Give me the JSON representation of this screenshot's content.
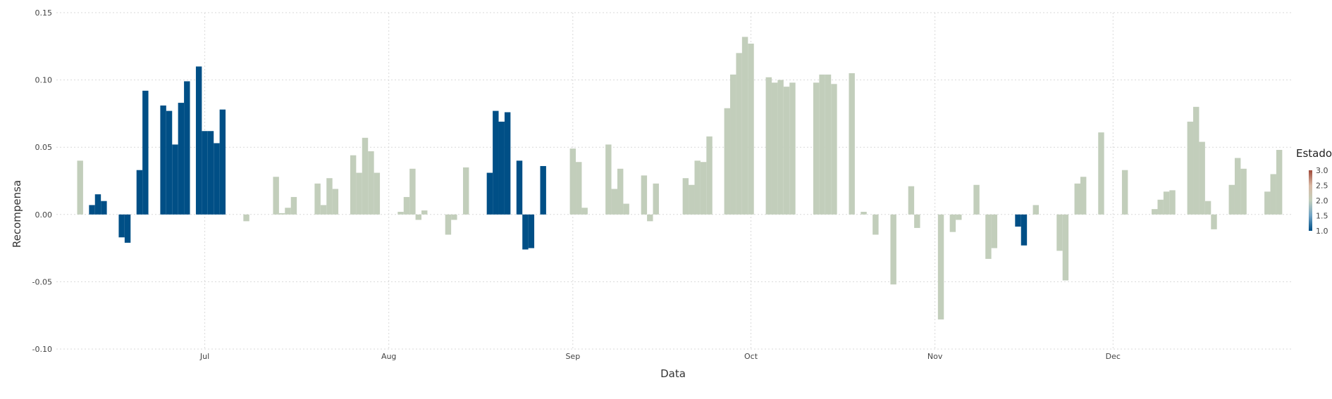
{
  "chart_data": {
    "type": "bar",
    "title": "",
    "xlabel": "Data",
    "ylabel": "Recompensa",
    "ylim": [
      -0.1,
      0.15
    ],
    "xlim": [
      "2023-06-06",
      "2023-12-31"
    ],
    "grid": true,
    "yticks": [
      -0.1,
      -0.05,
      0.0,
      0.05,
      0.1,
      0.15
    ],
    "ytick_labels": [
      "-0.10",
      "-0.05",
      "0.00",
      "0.05",
      "0.10",
      "0.15"
    ],
    "xticks": [
      {
        "date": "2023-07-01",
        "label": "Jul"
      },
      {
        "date": "2023-08-01",
        "label": "Aug"
      },
      {
        "date": "2023-09-01",
        "label": "Sep"
      },
      {
        "date": "2023-10-01",
        "label": "Oct"
      },
      {
        "date": "2023-11-01",
        "label": "Nov"
      },
      {
        "date": "2023-12-01",
        "label": "Dec"
      }
    ],
    "legend": {
      "title": "Estado",
      "position": "right",
      "range": [
        1.0,
        3.0
      ],
      "ticks": [
        "1.0",
        "1.5",
        "2.0",
        "2.5",
        "3.0"
      ],
      "colors": [
        "#004f86",
        "#6fa3c5",
        "#c2cebb",
        "#d9b9a4",
        "#a04a3a"
      ]
    },
    "colors": {
      "estado_1": "#004f86",
      "estado_2": "#c2cebb"
    },
    "bars": [
      {
        "date": "2023-06-10",
        "value": 0.04,
        "estado": 2
      },
      {
        "date": "2023-06-12",
        "value": 0.007,
        "estado": 1
      },
      {
        "date": "2023-06-13",
        "value": 0.015,
        "estado": 1
      },
      {
        "date": "2023-06-14",
        "value": 0.01,
        "estado": 1
      },
      {
        "date": "2023-06-17",
        "value": -0.017,
        "estado": 1
      },
      {
        "date": "2023-06-18",
        "value": -0.021,
        "estado": 1
      },
      {
        "date": "2023-06-20",
        "value": 0.033,
        "estado": 1
      },
      {
        "date": "2023-06-21",
        "value": 0.092,
        "estado": 1
      },
      {
        "date": "2023-06-24",
        "value": 0.081,
        "estado": 1
      },
      {
        "date": "2023-06-25",
        "value": 0.077,
        "estado": 1
      },
      {
        "date": "2023-06-26",
        "value": 0.052,
        "estado": 1
      },
      {
        "date": "2023-06-27",
        "value": 0.083,
        "estado": 1
      },
      {
        "date": "2023-06-28",
        "value": 0.099,
        "estado": 1
      },
      {
        "date": "2023-06-30",
        "value": 0.11,
        "estado": 1
      },
      {
        "date": "2023-07-01",
        "value": 0.062,
        "estado": 1
      },
      {
        "date": "2023-07-02",
        "value": 0.062,
        "estado": 1
      },
      {
        "date": "2023-07-03",
        "value": 0.053,
        "estado": 1
      },
      {
        "date": "2023-07-04",
        "value": 0.078,
        "estado": 1
      },
      {
        "date": "2023-07-08",
        "value": -0.005,
        "estado": 2
      },
      {
        "date": "2023-07-13",
        "value": 0.028,
        "estado": 2
      },
      {
        "date": "2023-07-14",
        "value": 0.001,
        "estado": 2
      },
      {
        "date": "2023-07-15",
        "value": 0.005,
        "estado": 2
      },
      {
        "date": "2023-07-16",
        "value": 0.013,
        "estado": 2
      },
      {
        "date": "2023-07-20",
        "value": 0.023,
        "estado": 2
      },
      {
        "date": "2023-07-21",
        "value": 0.007,
        "estado": 2
      },
      {
        "date": "2023-07-22",
        "value": 0.027,
        "estado": 2
      },
      {
        "date": "2023-07-23",
        "value": 0.019,
        "estado": 2
      },
      {
        "date": "2023-07-26",
        "value": 0.044,
        "estado": 2
      },
      {
        "date": "2023-07-27",
        "value": 0.031,
        "estado": 2
      },
      {
        "date": "2023-07-28",
        "value": 0.057,
        "estado": 2
      },
      {
        "date": "2023-07-29",
        "value": 0.047,
        "estado": 2
      },
      {
        "date": "2023-07-30",
        "value": 0.031,
        "estado": 2
      },
      {
        "date": "2023-08-03",
        "value": 0.002,
        "estado": 2
      },
      {
        "date": "2023-08-04",
        "value": 0.013,
        "estado": 2
      },
      {
        "date": "2023-08-05",
        "value": 0.034,
        "estado": 2
      },
      {
        "date": "2023-08-06",
        "value": -0.004,
        "estado": 2
      },
      {
        "date": "2023-08-07",
        "value": 0.003,
        "estado": 2
      },
      {
        "date": "2023-08-11",
        "value": -0.015,
        "estado": 2
      },
      {
        "date": "2023-08-12",
        "value": -0.004,
        "estado": 2
      },
      {
        "date": "2023-08-14",
        "value": 0.035,
        "estado": 2
      },
      {
        "date": "2023-08-18",
        "value": 0.031,
        "estado": 1
      },
      {
        "date": "2023-08-19",
        "value": 0.077,
        "estado": 1
      },
      {
        "date": "2023-08-20",
        "value": 0.069,
        "estado": 1
      },
      {
        "date": "2023-08-21",
        "value": 0.076,
        "estado": 1
      },
      {
        "date": "2023-08-23",
        "value": 0.04,
        "estado": 1
      },
      {
        "date": "2023-08-24",
        "value": -0.026,
        "estado": 1
      },
      {
        "date": "2023-08-25",
        "value": -0.025,
        "estado": 1
      },
      {
        "date": "2023-08-27",
        "value": 0.036,
        "estado": 1
      },
      {
        "date": "2023-09-01",
        "value": 0.049,
        "estado": 2
      },
      {
        "date": "2023-09-02",
        "value": 0.039,
        "estado": 2
      },
      {
        "date": "2023-09-03",
        "value": 0.005,
        "estado": 2
      },
      {
        "date": "2023-09-07",
        "value": 0.052,
        "estado": 2
      },
      {
        "date": "2023-09-08",
        "value": 0.019,
        "estado": 2
      },
      {
        "date": "2023-09-09",
        "value": 0.034,
        "estado": 2
      },
      {
        "date": "2023-09-10",
        "value": 0.008,
        "estado": 2
      },
      {
        "date": "2023-09-13",
        "value": 0.029,
        "estado": 2
      },
      {
        "date": "2023-09-14",
        "value": -0.005,
        "estado": 2
      },
      {
        "date": "2023-09-15",
        "value": 0.023,
        "estado": 2
      },
      {
        "date": "2023-09-20",
        "value": 0.027,
        "estado": 2
      },
      {
        "date": "2023-09-21",
        "value": 0.022,
        "estado": 2
      },
      {
        "date": "2023-09-22",
        "value": 0.04,
        "estado": 2
      },
      {
        "date": "2023-09-23",
        "value": 0.039,
        "estado": 2
      },
      {
        "date": "2023-09-24",
        "value": 0.058,
        "estado": 2
      },
      {
        "date": "2023-09-27",
        "value": 0.079,
        "estado": 2
      },
      {
        "date": "2023-09-28",
        "value": 0.104,
        "estado": 2
      },
      {
        "date": "2023-09-29",
        "value": 0.12,
        "estado": 2
      },
      {
        "date": "2023-09-30",
        "value": 0.132,
        "estado": 2
      },
      {
        "date": "2023-10-01",
        "value": 0.127,
        "estado": 2
      },
      {
        "date": "2023-10-04",
        "value": 0.102,
        "estado": 2
      },
      {
        "date": "2023-10-05",
        "value": 0.098,
        "estado": 2
      },
      {
        "date": "2023-10-06",
        "value": 0.1,
        "estado": 2
      },
      {
        "date": "2023-10-07",
        "value": 0.095,
        "estado": 2
      },
      {
        "date": "2023-10-08",
        "value": 0.098,
        "estado": 2
      },
      {
        "date": "2023-10-12",
        "value": 0.098,
        "estado": 2
      },
      {
        "date": "2023-10-13",
        "value": 0.104,
        "estado": 2
      },
      {
        "date": "2023-10-14",
        "value": 0.104,
        "estado": 2
      },
      {
        "date": "2023-10-15",
        "value": 0.097,
        "estado": 2
      },
      {
        "date": "2023-10-18",
        "value": 0.105,
        "estado": 2
      },
      {
        "date": "2023-10-20",
        "value": 0.002,
        "estado": 2
      },
      {
        "date": "2023-10-22",
        "value": -0.015,
        "estado": 2
      },
      {
        "date": "2023-10-25",
        "value": -0.052,
        "estado": 2
      },
      {
        "date": "2023-10-28",
        "value": 0.021,
        "estado": 2
      },
      {
        "date": "2023-10-29",
        "value": -0.01,
        "estado": 2
      },
      {
        "date": "2023-11-02",
        "value": -0.078,
        "estado": 2
      },
      {
        "date": "2023-11-04",
        "value": -0.013,
        "estado": 2
      },
      {
        "date": "2023-11-05",
        "value": -0.004,
        "estado": 2
      },
      {
        "date": "2023-11-08",
        "value": 0.022,
        "estado": 2
      },
      {
        "date": "2023-11-10",
        "value": -0.033,
        "estado": 2
      },
      {
        "date": "2023-11-11",
        "value": -0.025,
        "estado": 2
      },
      {
        "date": "2023-11-15",
        "value": -0.009,
        "estado": 1
      },
      {
        "date": "2023-11-16",
        "value": -0.023,
        "estado": 1
      },
      {
        "date": "2023-11-18",
        "value": 0.007,
        "estado": 2
      },
      {
        "date": "2023-11-22",
        "value": -0.027,
        "estado": 2
      },
      {
        "date": "2023-11-23",
        "value": -0.049,
        "estado": 2
      },
      {
        "date": "2023-11-25",
        "value": 0.023,
        "estado": 2
      },
      {
        "date": "2023-11-26",
        "value": 0.028,
        "estado": 2
      },
      {
        "date": "2023-11-29",
        "value": 0.061,
        "estado": 2
      },
      {
        "date": "2023-12-03",
        "value": 0.033,
        "estado": 2
      },
      {
        "date": "2023-12-08",
        "value": 0.004,
        "estado": 2
      },
      {
        "date": "2023-12-09",
        "value": 0.011,
        "estado": 2
      },
      {
        "date": "2023-12-10",
        "value": 0.017,
        "estado": 2
      },
      {
        "date": "2023-12-11",
        "value": 0.018,
        "estado": 2
      },
      {
        "date": "2023-12-14",
        "value": 0.069,
        "estado": 2
      },
      {
        "date": "2023-12-15",
        "value": 0.08,
        "estado": 2
      },
      {
        "date": "2023-12-16",
        "value": 0.054,
        "estado": 2
      },
      {
        "date": "2023-12-17",
        "value": 0.01,
        "estado": 2
      },
      {
        "date": "2023-12-18",
        "value": -0.011,
        "estado": 2
      },
      {
        "date": "2023-12-21",
        "value": 0.022,
        "estado": 2
      },
      {
        "date": "2023-12-22",
        "value": 0.042,
        "estado": 2
      },
      {
        "date": "2023-12-23",
        "value": 0.034,
        "estado": 2
      },
      {
        "date": "2023-12-27",
        "value": 0.017,
        "estado": 2
      },
      {
        "date": "2023-12-28",
        "value": 0.03,
        "estado": 2
      },
      {
        "date": "2023-12-29",
        "value": 0.048,
        "estado": 2
      }
    ]
  }
}
